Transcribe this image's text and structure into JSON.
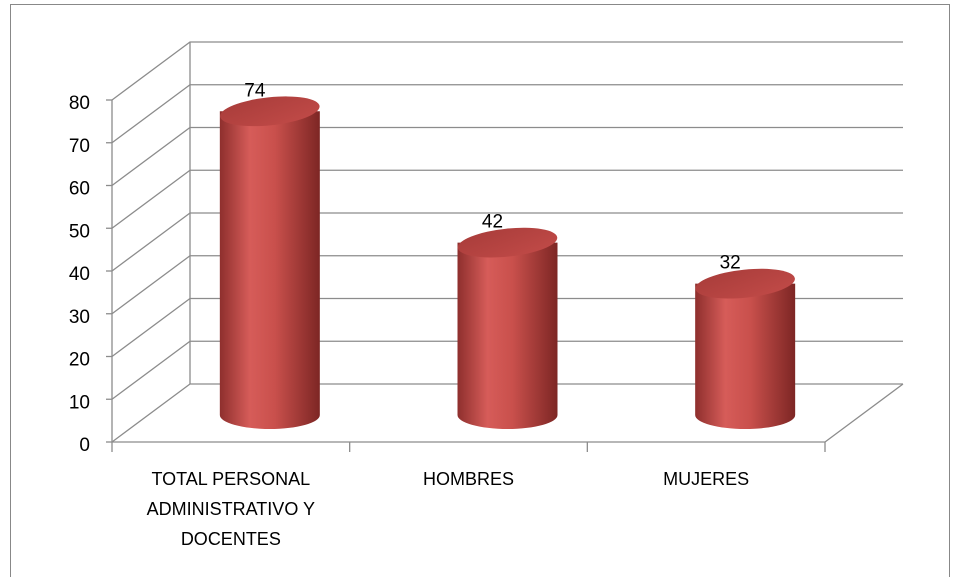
{
  "chart_data": {
    "type": "bar",
    "categories": [
      "TOTAL PERSONAL ADMINISTRATIVO Y DOCENTES",
      "HOMBRES",
      "MUJERES"
    ],
    "values": [
      74,
      42,
      32
    ],
    "color": "#c0504d",
    "ylim": [
      0,
      80
    ],
    "yticks": [
      0,
      10,
      20,
      30,
      40,
      50,
      60,
      70,
      80
    ],
    "grid": true
  }
}
